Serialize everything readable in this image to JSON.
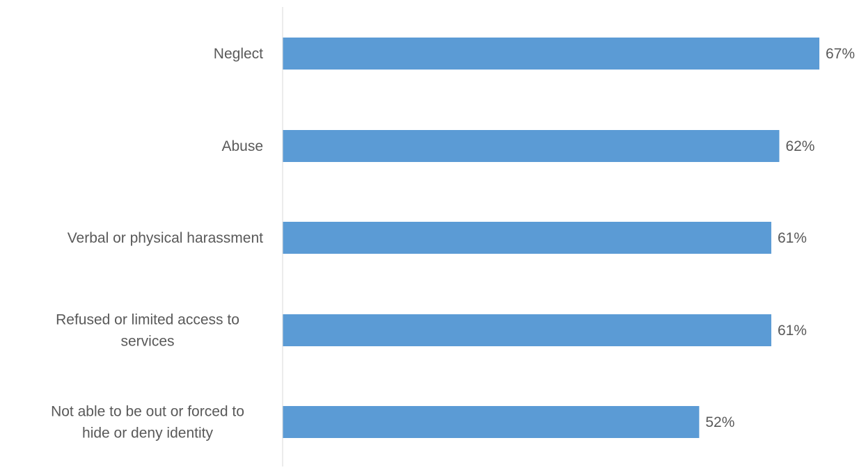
{
  "chart_data": {
    "type": "bar",
    "orientation": "horizontal",
    "categories": [
      [
        "Neglect"
      ],
      [
        "Abuse"
      ],
      [
        "Verbal or physical harassment"
      ],
      [
        "Refused or limited access to",
        "services"
      ],
      [
        "Not able to be out or forced to",
        "hide or deny identity"
      ]
    ],
    "values": [
      67,
      62,
      61,
      61,
      52
    ],
    "value_labels": [
      "67%",
      "62%",
      "61%",
      "61%",
      "52%"
    ],
    "value_unit": "%",
    "xlim": [
      0,
      67
    ],
    "grid": false,
    "legend": "none",
    "colors": {
      "bar": "#5b9bd5",
      "label_text": "#595959",
      "axis_line": "#d9d9d9",
      "background": "#ffffff"
    }
  }
}
